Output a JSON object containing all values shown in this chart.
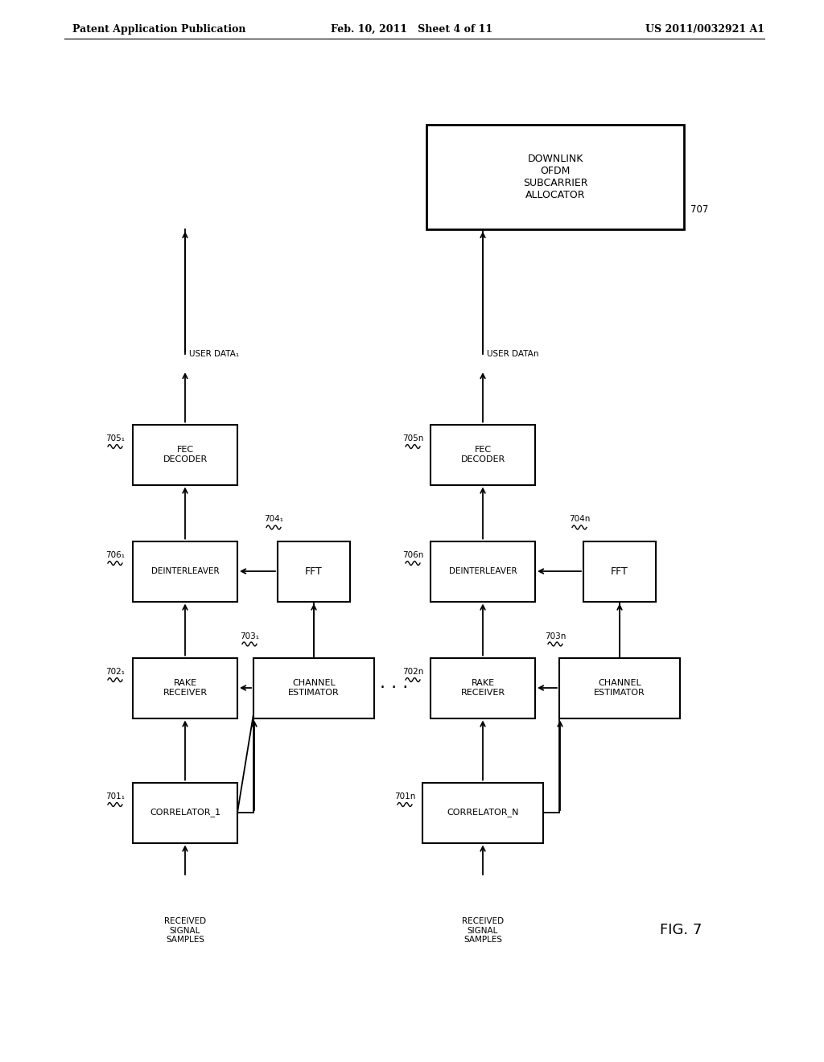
{
  "title_left": "Patent Application Publication",
  "title_mid": "Feb. 10, 2011   Sheet 4 of 11",
  "title_right": "US 2011/0032921 A1",
  "fig_label": "FIG. 7",
  "background_color": "#ffffff",
  "text_color": "#000000"
}
